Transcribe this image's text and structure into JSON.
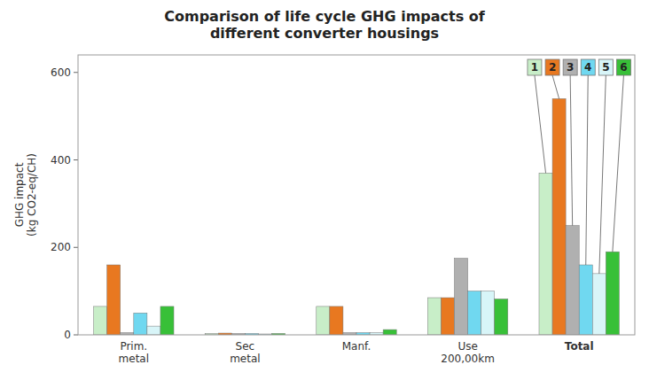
{
  "chart_data": {
    "type": "bar",
    "title": "Comparison of life cycle GHG impacts of\ndifferent converter housings",
    "y_label": "GHG impact\n(kg CO2-eq/CH)",
    "categories": [
      "Prim.\nmetal",
      "Sec\nmetal",
      "Manf.",
      "Use\n200,00km",
      "Total"
    ],
    "series": [
      {
        "name": "1",
        "color": "#c8eec8",
        "values": [
          65,
          3,
          65,
          85,
          370
        ]
      },
      {
        "name": "2",
        "color": "#e87820",
        "values": [
          160,
          4,
          65,
          85,
          540
        ]
      },
      {
        "name": "3",
        "color": "#b0b0b0",
        "values": [
          5,
          3,
          5,
          175,
          250
        ]
      },
      {
        "name": "4",
        "color": "#70d8f0",
        "values": [
          50,
          3,
          5,
          100,
          160
        ]
      },
      {
        "name": "5",
        "color": "#d8f5f8",
        "values": [
          20,
          2,
          5,
          100,
          140
        ]
      },
      {
        "name": "6",
        "color": "#38c038",
        "values": [
          65,
          3,
          12,
          82,
          190
        ]
      }
    ],
    "ylim": [
      0,
      640
    ],
    "yticks": [
      0,
      200,
      400,
      600
    ],
    "grid": false
  }
}
